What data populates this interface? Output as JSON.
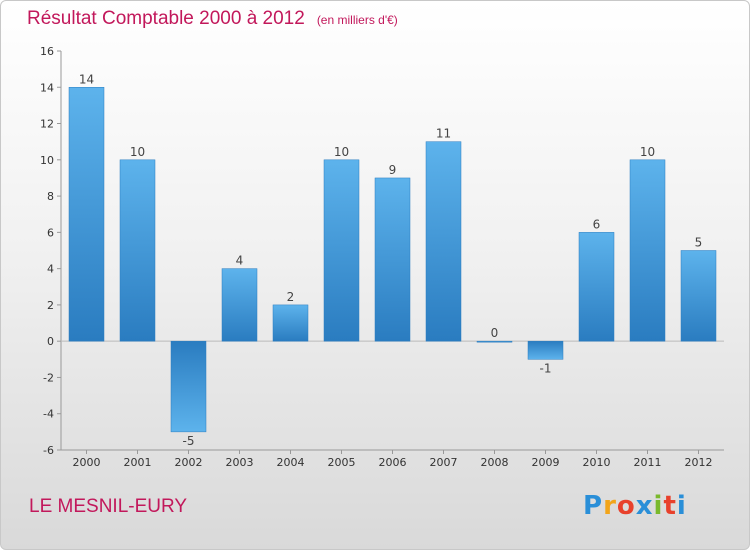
{
  "header": {
    "title": "Résultat Comptable 2000 à 2012",
    "subtitle": "(en milliers d'€)"
  },
  "footer": {
    "commune": "LE MESNIL-EURY",
    "logo_letters": [
      "P",
      "r",
      "o",
      "x",
      "i",
      "t",
      "i"
    ],
    "logo_colors": [
      "#2a8fd8",
      "#f2a51a",
      "#e8412c",
      "#2a8fd8",
      "#7ab92d",
      "#e8412c",
      "#2a8fd8"
    ]
  },
  "chart_data": {
    "type": "bar",
    "title": "Résultat Comptable 2000 à 2012",
    "ylabel": "en milliers d'€",
    "categories": [
      "2000",
      "2001",
      "2002",
      "2003",
      "2004",
      "2005",
      "2006",
      "2007",
      "2008",
      "2009",
      "2010",
      "2011",
      "2012"
    ],
    "values": [
      14,
      10,
      -5,
      4,
      2,
      10,
      9,
      11,
      0,
      -1,
      6,
      10,
      5
    ],
    "ylim": [
      -6,
      16
    ],
    "yticks": [
      -6,
      -4,
      -2,
      0,
      2,
      4,
      6,
      8,
      10,
      12,
      14,
      16
    ],
    "bar_color": "#3d97d9",
    "grid": false
  }
}
